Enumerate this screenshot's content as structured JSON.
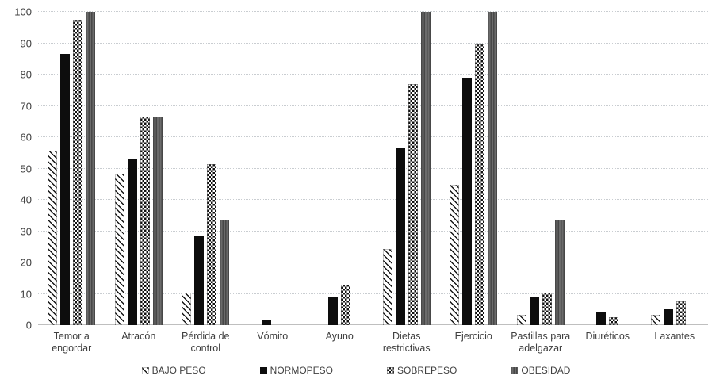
{
  "chart_data": {
    "type": "bar",
    "title": "",
    "categories": [
      "Temor a engordar",
      "Atracón",
      "Pérdida de control",
      "Vómito",
      "Ayuno",
      "Dietas restrictivas",
      "Ejercicio",
      "Pastillas para adelgazar",
      "Diuréticos",
      "Laxantes"
    ],
    "categories_wrapped": [
      [
        "Temor a",
        "engordar"
      ],
      [
        "Atracón"
      ],
      [
        "Pérdida de",
        "control"
      ],
      [
        "Vómito"
      ],
      [
        "Ayuno"
      ],
      [
        "Dietas",
        "restrictivas"
      ],
      [
        "Ejercicio"
      ],
      [
        "Pastillas para",
        "adelgazar"
      ],
      [
        "Diuréticos"
      ],
      [
        "Laxantes"
      ]
    ],
    "series": [
      {
        "name": "BAJO PESO",
        "pattern": "diagonal-hatch",
        "values": [
          55.8,
          48.3,
          10.3,
          0,
          0,
          24.2,
          44.8,
          3.4,
          0,
          3.4
        ]
      },
      {
        "name": "NORMOPESO",
        "pattern": "solid-black",
        "values": [
          86.7,
          53.0,
          28.6,
          1.4,
          9.2,
          56.5,
          79.0,
          9.2,
          4.1,
          5.1
        ]
      },
      {
        "name": "SOBREPESO",
        "pattern": "checkerboard",
        "values": [
          97.5,
          66.5,
          51.3,
          0,
          12.8,
          77.0,
          89.7,
          10.3,
          2.6,
          7.7
        ]
      },
      {
        "name": "OBESIDAD",
        "pattern": "dark-vertical",
        "values": [
          100,
          66.5,
          33.3,
          0,
          0,
          100,
          100,
          33.3,
          0,
          0
        ]
      }
    ],
    "xlabel": "",
    "ylabel": "",
    "ylim": [
      0,
      100
    ],
    "yticks": [
      0,
      10,
      20,
      30,
      40,
      50,
      60,
      70,
      80,
      90,
      100
    ],
    "grid": "horizontal-dotted",
    "legend_position": "bottom"
  },
  "colors": {
    "background": "#ffffff",
    "gridline": "#c9cdd1",
    "axis_line": "#bfbfbf",
    "tick_text": "#404040",
    "bar_black": "#0d0d0d",
    "bar_dark_gray": "#595959"
  }
}
